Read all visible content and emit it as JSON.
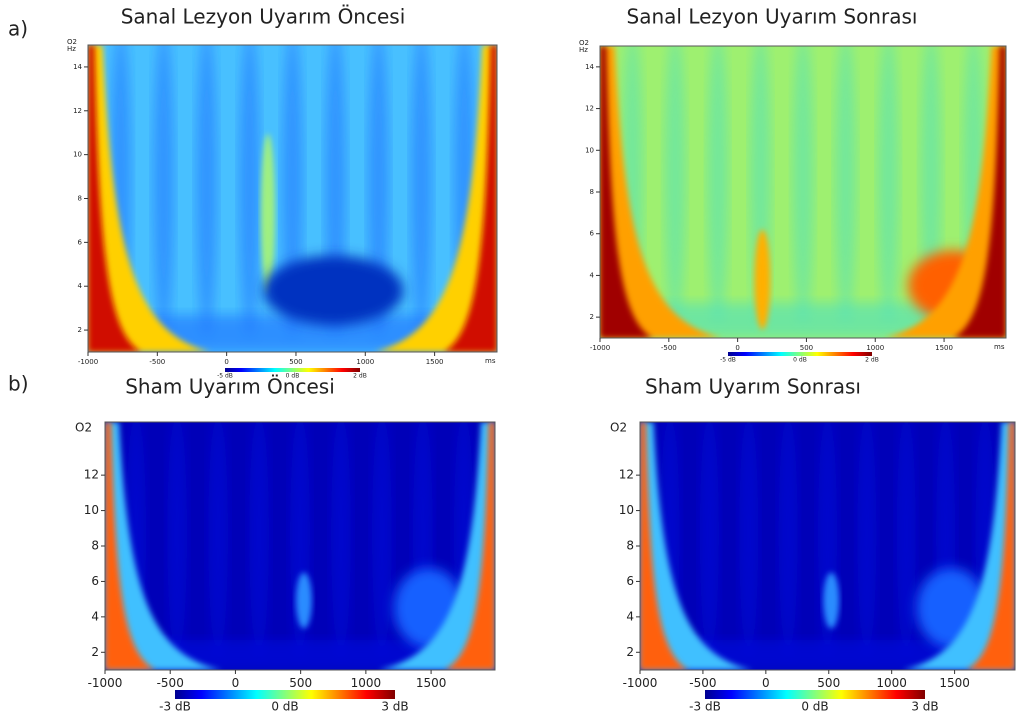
{
  "row_labels": [
    "a)",
    "b)"
  ],
  "chart_data": [
    {
      "type": "spectrogram",
      "title": "Sanal Lezyon Uyarım Öncesi",
      "channel": "O2",
      "y_unit": "Hz",
      "x_unit": "ms",
      "xlim": [
        -1000,
        1950
      ],
      "ylim": [
        1,
        15
      ],
      "xticks": [
        -1000,
        -500,
        0,
        500,
        1000,
        1500
      ],
      "yticks": [
        2,
        4,
        6,
        8,
        10,
        12,
        14
      ],
      "colorbar_labels": [
        "-5 dB",
        "0 dB",
        "2 dB"
      ]
    },
    {
      "type": "spectrogram",
      "title": "Sanal Lezyon Uyarım Sonrası",
      "channel": "O2",
      "y_unit": "Hz",
      "x_unit": "ms",
      "xlim": [
        -1000,
        1950
      ],
      "ylim": [
        1,
        15
      ],
      "xticks": [
        -1000,
        -500,
        0,
        500,
        1000,
        1500
      ],
      "yticks": [
        2,
        4,
        6,
        8,
        10,
        12,
        14
      ],
      "colorbar_labels": [
        "-5 dB",
        "0 dB",
        "2 dB"
      ]
    },
    {
      "type": "spectrogram",
      "title": "Sham Uyarım Öncesi",
      "channel": "O2",
      "xlim": [
        -1000,
        1990
      ],
      "ylim": [
        1,
        15
      ],
      "xticks": [
        -1000,
        -500,
        0,
        500,
        1000,
        1500
      ],
      "yticks": [
        2,
        4,
        6,
        8,
        10,
        12
      ],
      "colorbar_labels": [
        "-3 dB",
        "0 dB",
        "3 dB"
      ]
    },
    {
      "type": "spectrogram",
      "title": "Sham Uyarım Sonrası",
      "channel": "O2",
      "xlim": [
        -1000,
        1980
      ],
      "ylim": [
        1,
        15
      ],
      "xticks": [
        -1000,
        -500,
        0,
        500,
        1000,
        1500
      ],
      "yticks": [
        2,
        4,
        6,
        8,
        10,
        12
      ],
      "colorbar_labels": [
        "-3 dB",
        "0 dB",
        "3 dB"
      ]
    }
  ]
}
